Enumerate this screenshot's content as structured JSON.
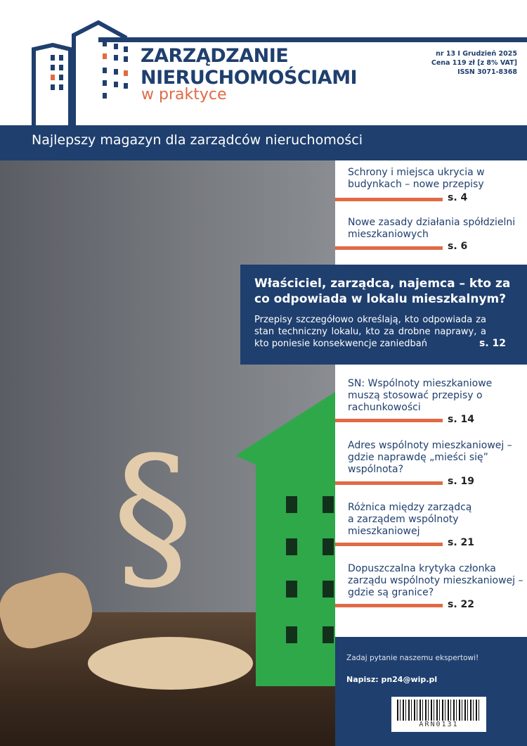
{
  "header": {
    "title_line1": "ZARZĄDZANIE",
    "title_line2": "NIERUCHOMOŚCIAMI",
    "subtitle": "w praktyce",
    "issue": "nr 13 I Grudzień 2025",
    "price": "Cena 119 zł [z 8% VAT]",
    "issn": "ISSN 3071-8368",
    "tagline": "Najlepszy magazyn dla zarządców nieruchomości"
  },
  "colors": {
    "navy": "#1f3f6e",
    "orange": "#e06a45",
    "green": "#2fa84a"
  },
  "articles": [
    {
      "title": "Schrony i miejsca ukrycia w budynkach – nowe przepisy",
      "page": "s. 4"
    },
    {
      "title": "Nowe zasady działania spółdzielni mieszkaniowych",
      "page": "s. 6"
    },
    {
      "title": "SN: Wspólnoty mieszkaniowe muszą stosować przepisy o rachunkowości",
      "page": "s. 14"
    },
    {
      "title": "Adres wspólnoty mieszkaniowej – gdzie naprawdę „mieści się” wspólnota?",
      "page": "s. 19"
    },
    {
      "title": "Różnica między zarządcą a zarządem wspólnoty mieszkaniowej",
      "page": "s. 21"
    },
    {
      "title": "Dopuszczalna krytyka członka zarządu wspólnoty mieszkaniowej – gdzie są granice?",
      "page": "s. 22"
    }
  ],
  "feature": {
    "title": "Właściciel, zarządca, najemca – kto za co odpowiada w lokalu mieszkalnym?",
    "body": "Przepisy szczegółowo określają, kto odpowiada za stan techniczny lokalu, kto za drobne naprawy, a kto poniesie konsekwencje zaniedbań",
    "page": "s. 12"
  },
  "contact": {
    "prompt": "Zadaj pytanie naszemu ekspertowi!",
    "email": "Napisz: pn24@wip.pl",
    "barcode": "ARN0131"
  }
}
